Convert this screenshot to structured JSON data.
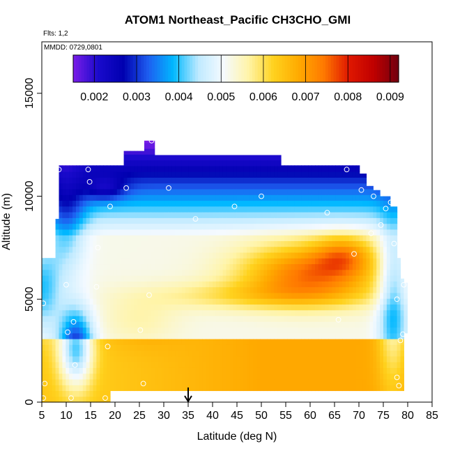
{
  "chart_data": {
    "type": "heatmap",
    "title": "ATOM1 Northeast_Pacific CH3CHO_GMI",
    "flights_label": "Flts: 1,2",
    "dates_label": "MMDD: 0729,0801",
    "xlabel": "Latitude (deg N)",
    "ylabel": "Altitude (m)",
    "xlim": [
      5,
      85
    ],
    "ylim": [
      0,
      17500
    ],
    "x_ticks": [
      5,
      10,
      15,
      20,
      25,
      30,
      35,
      40,
      45,
      50,
      55,
      60,
      65,
      70,
      75,
      80,
      85
    ],
    "y_ticks": [
      0,
      5000,
      10000,
      15000
    ],
    "colorbar": {
      "placement": "top-inside",
      "min": 0.0015,
      "max": 0.0092,
      "ticks": [
        0.002,
        0.003,
        0.004,
        0.005,
        0.006,
        0.007,
        0.008,
        0.009
      ],
      "tick_labels": [
        "0.002",
        "0.003",
        "0.004",
        "0.005",
        "0.006",
        "0.007",
        "0.008",
        "0.009"
      ],
      "colors": [
        "#7a1de8",
        "#1a0acc",
        "#0000b0",
        "#1e5ef0",
        "#00b8ff",
        "#bfeaff",
        "#f5faff",
        "#fff4a8",
        "#ffd21e",
        "#ffaa00",
        "#ff7a00",
        "#e01800",
        "#c00000",
        "#700010"
      ]
    },
    "marker_latitude": 35,
    "obs_points": [
      [
        5.3,
        4800
      ],
      [
        5.6,
        900
      ],
      [
        5.3,
        200
      ],
      [
        8.5,
        11300
      ],
      [
        10,
        5700
      ],
      [
        10.3,
        3400
      ],
      [
        11,
        200
      ],
      [
        11.5,
        3900
      ],
      [
        11.8,
        1800
      ],
      [
        14.5,
        11300
      ],
      [
        14.8,
        10700
      ],
      [
        16.2,
        5600
      ],
      [
        16.5,
        7500
      ],
      [
        18,
        200
      ],
      [
        18.5,
        2700
      ],
      [
        19,
        9500
      ],
      [
        22.3,
        10400
      ],
      [
        25.2,
        3500
      ],
      [
        25.8,
        900
      ],
      [
        27,
        5200
      ],
      [
        27.5,
        12700
      ],
      [
        31,
        10400
      ],
      [
        36.5,
        8900
      ],
      [
        44.5,
        9500
      ],
      [
        50,
        10000
      ],
      [
        63.5,
        9200
      ],
      [
        65.8,
        4000
      ],
      [
        67.5,
        11300
      ],
      [
        69,
        7200
      ],
      [
        70.5,
        10300
      ],
      [
        72.5,
        8200
      ],
      [
        73,
        10000
      ],
      [
        74.5,
        8600
      ],
      [
        75.5,
        9400
      ],
      [
        76.5,
        9700
      ],
      [
        77.2,
        7700
      ],
      [
        77.8,
        1200
      ],
      [
        77.8,
        5000
      ],
      [
        78.2,
        800
      ],
      [
        78.5,
        3000
      ],
      [
        79,
        3300
      ],
      [
        79.2,
        5700
      ]
    ]
  }
}
